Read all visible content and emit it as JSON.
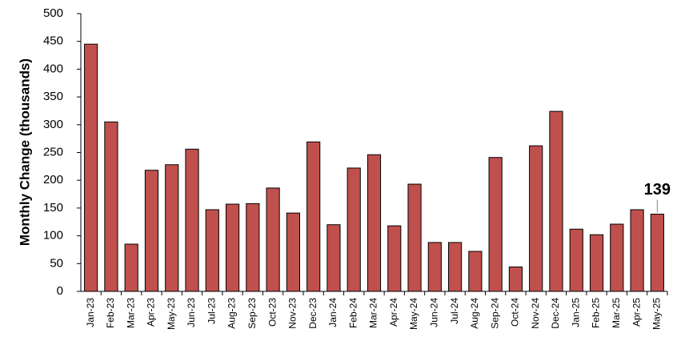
{
  "chart_data": {
    "type": "bar",
    "y_label": "Monthly Change (thousands)",
    "categories": [
      "Jan-23",
      "Feb-23",
      "Mar-23",
      "Apr-23",
      "May-23",
      "Jun-23",
      "Jul-23",
      "Aug-23",
      "Sep-23",
      "Oct-23",
      "Nov-23",
      "Dec-23",
      "Jan-24",
      "Feb-24",
      "Mar-24",
      "Apr-24",
      "May-24",
      "Jun-24",
      "Jul-24",
      "Aug-24",
      "Sep-24",
      "Oct-24",
      "Nov-24",
      "Dec-24",
      "Jan-25",
      "Feb-25",
      "Mar-25",
      "Apr-25",
      "May-25"
    ],
    "values": [
      445,
      305,
      85,
      218,
      228,
      256,
      147,
      157,
      158,
      186,
      141,
      269,
      120,
      222,
      246,
      118,
      193,
      88,
      88,
      72,
      241,
      44,
      262,
      324,
      112,
      102,
      121,
      147,
      139
    ],
    "color": "#c0504d",
    "ylim": [
      0,
      500
    ],
    "yticks": [
      0,
      50,
      100,
      150,
      200,
      250,
      300,
      350,
      400,
      450,
      500
    ],
    "grid": false,
    "data_labels": "last"
  }
}
